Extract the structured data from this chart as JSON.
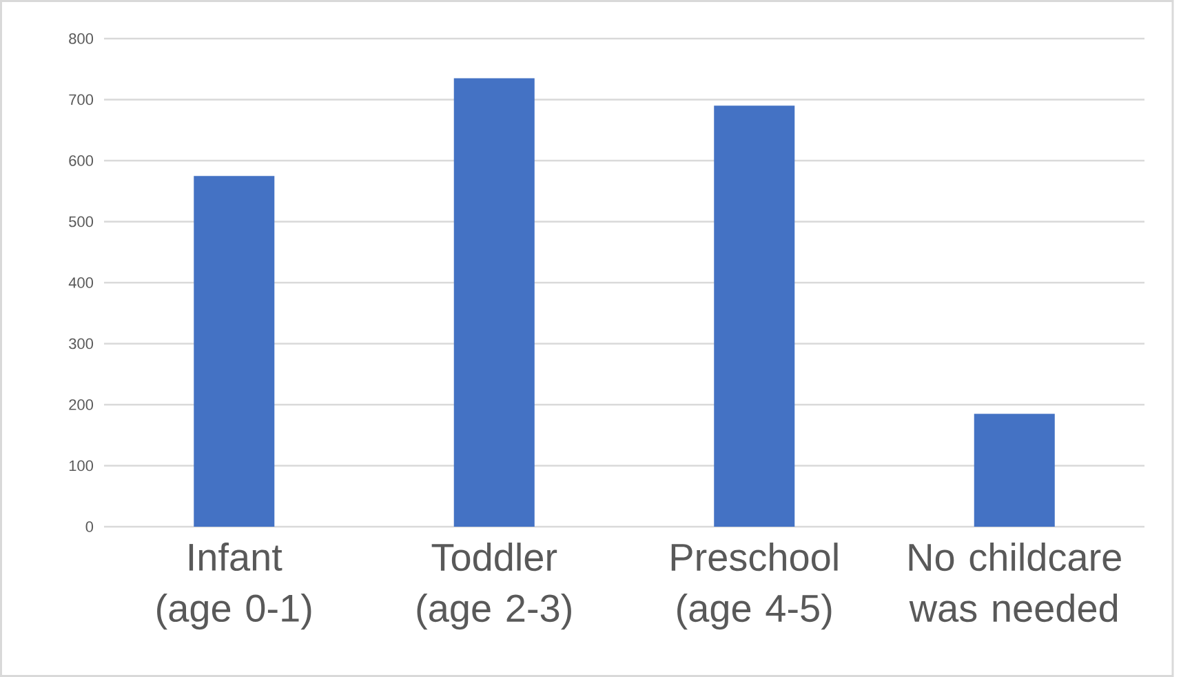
{
  "chart_data": {
    "type": "bar",
    "categories": [
      "Infant (age 0-1)",
      "Toddler (age 2-3)",
      "Preschool (age 4-5)",
      "No childcare was needed"
    ],
    "values": [
      575,
      735,
      690,
      185
    ],
    "color": "#4472c4",
    "ylim": [
      0,
      800
    ],
    "yticks": [
      0,
      100,
      200,
      300,
      400,
      500,
      600,
      700,
      800
    ],
    "grid": "y"
  }
}
